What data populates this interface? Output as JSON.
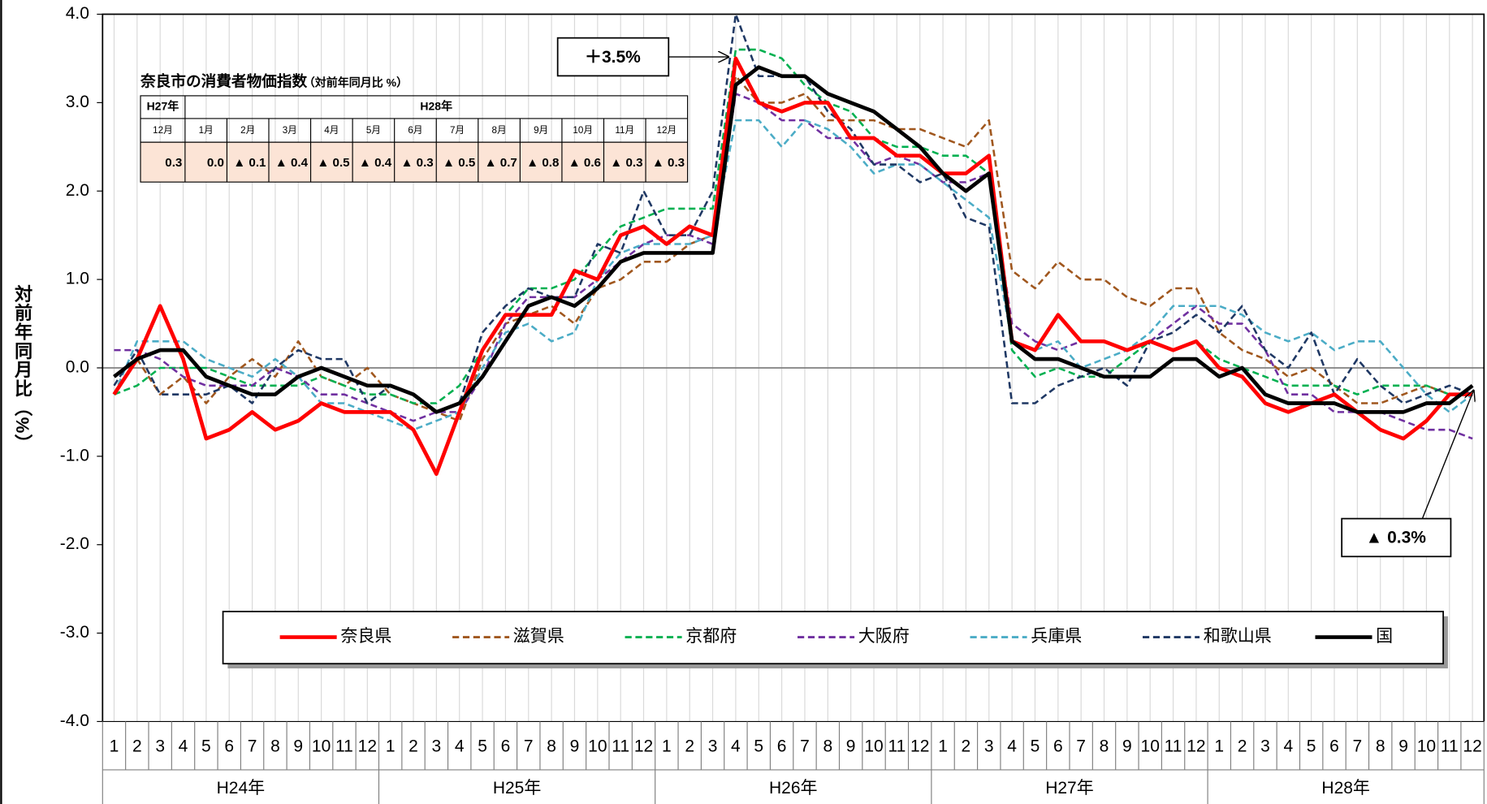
{
  "chart_data": {
    "type": "line",
    "y_label": "対前年同月比（%）",
    "categories": [
      "1",
      "2",
      "3",
      "4",
      "5",
      "6",
      "7",
      "8",
      "9",
      "10",
      "11",
      "12",
      "1",
      "2",
      "3",
      "4",
      "5",
      "6",
      "7",
      "8",
      "9",
      "10",
      "11",
      "12",
      "1",
      "2",
      "3",
      "4",
      "5",
      "6",
      "7",
      "8",
      "9",
      "10",
      "11",
      "12",
      "1",
      "2",
      "3",
      "4",
      "5",
      "6",
      "7",
      "8",
      "9",
      "10",
      "11",
      "12",
      "1",
      "2",
      "3",
      "4",
      "5",
      "6",
      "7",
      "8",
      "9",
      "10",
      "11",
      "12"
    ],
    "x_groups": [
      "H24年",
      "H25年",
      "H26年",
      "H27年",
      "H28年"
    ],
    "ylim": [
      -4,
      4
    ],
    "yticks": [
      {
        "value": 4,
        "label": "4.0"
      },
      {
        "value": 3,
        "label": "3.0"
      },
      {
        "value": 2,
        "label": "2.0"
      },
      {
        "value": 1,
        "label": "1.0"
      },
      {
        "value": 0,
        "label": "0.0"
      },
      {
        "value": -1,
        "label": "-1.0"
      },
      {
        "value": -2,
        "label": "-2.0"
      },
      {
        "value": -3,
        "label": "-3.0"
      },
      {
        "value": -4,
        "label": "-4.0"
      }
    ],
    "negative_tick_color": "#ff0000",
    "grid": true,
    "zero_line": true,
    "legend": "bottom",
    "series": [
      {
        "name": "奈良県",
        "color": "#ff0000",
        "dash": false,
        "values": [
          -0.3,
          0.1,
          0.7,
          0.1,
          -0.8,
          -0.7,
          -0.5,
          -0.7,
          -0.6,
          -0.4,
          -0.5,
          -0.5,
          -0.5,
          -0.7,
          -1.2,
          -0.5,
          0.2,
          0.6,
          0.6,
          0.6,
          1.1,
          1.0,
          1.5,
          1.6,
          1.4,
          1.6,
          1.5,
          3.5,
          3.0,
          2.9,
          3.0,
          3.0,
          2.6,
          2.6,
          2.4,
          2.4,
          2.2,
          2.2,
          2.4,
          0.3,
          0.2,
          0.6,
          0.3,
          0.3,
          0.2,
          0.3,
          0.2,
          0.3,
          0.0,
          -0.1,
          -0.4,
          -0.5,
          -0.4,
          -0.3,
          -0.5,
          -0.7,
          -0.8,
          -0.6,
          -0.3,
          -0.3
        ]
      },
      {
        "name": "滋賀県",
        "color": "#a0571e",
        "dash": true,
        "values": [
          -0.3,
          0.1,
          -0.3,
          -0.1,
          -0.4,
          -0.1,
          0.1,
          -0.1,
          0.3,
          -0.1,
          -0.2,
          0.0,
          -0.3,
          -0.4,
          -0.5,
          -0.6,
          0.1,
          0.5,
          0.6,
          0.7,
          0.5,
          0.9,
          1.0,
          1.2,
          1.2,
          1.4,
          1.5,
          3.3,
          3.0,
          3.0,
          3.1,
          2.8,
          2.8,
          2.8,
          2.7,
          2.7,
          2.6,
          2.5,
          2.8,
          1.1,
          0.9,
          1.2,
          1.0,
          1.0,
          0.8,
          0.7,
          0.9,
          0.9,
          0.4,
          0.2,
          0.1,
          -0.1,
          0.0,
          -0.2,
          -0.4,
          -0.4,
          -0.3,
          -0.2,
          -0.3,
          -0.3
        ]
      },
      {
        "name": "京都府",
        "color": "#00b050",
        "dash": true,
        "values": [
          -0.3,
          -0.2,
          0.0,
          0.0,
          0.0,
          -0.1,
          -0.2,
          -0.2,
          -0.2,
          -0.1,
          -0.2,
          -0.3,
          -0.3,
          -0.4,
          -0.4,
          -0.2,
          0.2,
          0.6,
          0.9,
          0.9,
          1.0,
          1.3,
          1.6,
          1.7,
          1.8,
          1.8,
          1.8,
          3.6,
          3.6,
          3.5,
          3.2,
          3.0,
          2.9,
          2.6,
          2.5,
          2.5,
          2.4,
          2.4,
          2.2,
          0.2,
          -0.1,
          0.0,
          -0.1,
          -0.1,
          0.1,
          0.3,
          0.2,
          0.3,
          0.1,
          0.0,
          -0.1,
          -0.2,
          -0.2,
          -0.2,
          -0.3,
          -0.2,
          -0.2,
          -0.2,
          -0.3,
          -0.3
        ]
      },
      {
        "name": "大阪府",
        "color": "#7030a0",
        "dash": true,
        "values": [
          0.2,
          0.2,
          0.1,
          -0.1,
          -0.2,
          -0.2,
          -0.2,
          0.0,
          -0.1,
          -0.3,
          -0.3,
          -0.4,
          -0.5,
          -0.6,
          -0.5,
          -0.5,
          -0.1,
          0.5,
          0.8,
          0.8,
          0.8,
          1.0,
          1.2,
          1.4,
          1.5,
          1.5,
          1.4,
          3.1,
          3.0,
          2.8,
          2.8,
          2.6,
          2.6,
          2.3,
          2.4,
          2.3,
          2.1,
          2.1,
          2.2,
          0.5,
          0.3,
          0.2,
          0.3,
          0.3,
          0.2,
          0.3,
          0.5,
          0.7,
          0.5,
          0.5,
          0.2,
          -0.3,
          -0.3,
          -0.5,
          -0.5,
          -0.5,
          -0.6,
          -0.7,
          -0.7,
          -0.8
        ]
      },
      {
        "name": "兵庫県",
        "color": "#4bacc6",
        "dash": true,
        "values": [
          -0.3,
          0.3,
          0.3,
          0.3,
          0.1,
          0.0,
          -0.1,
          0.1,
          -0.1,
          -0.4,
          -0.4,
          -0.5,
          -0.6,
          -0.7,
          -0.6,
          -0.5,
          0.0,
          0.4,
          0.5,
          0.3,
          0.4,
          1.0,
          1.3,
          1.4,
          1.4,
          1.4,
          1.5,
          2.8,
          2.8,
          2.5,
          2.8,
          2.7,
          2.5,
          2.2,
          2.3,
          2.3,
          2.1,
          1.9,
          1.7,
          0.3,
          0.2,
          0.3,
          0.0,
          0.1,
          0.2,
          0.4,
          0.7,
          0.7,
          0.7,
          0.6,
          0.4,
          0.3,
          0.4,
          0.2,
          0.3,
          0.3,
          0.0,
          -0.3,
          -0.5,
          -0.3
        ]
      },
      {
        "name": "和歌山県",
        "color": "#1f3864",
        "dash": true,
        "values": [
          -0.2,
          0.2,
          -0.3,
          -0.3,
          -0.3,
          -0.2,
          -0.4,
          0.0,
          0.2,
          0.1,
          0.1,
          -0.4,
          -0.2,
          -0.3,
          -0.5,
          -0.4,
          0.4,
          0.7,
          0.9,
          0.8,
          0.8,
          1.4,
          1.3,
          2.0,
          1.5,
          1.5,
          2.0,
          4.0,
          3.3,
          3.3,
          3.3,
          2.9,
          2.7,
          2.3,
          2.3,
          2.1,
          2.2,
          1.7,
          1.6,
          -0.4,
          -0.4,
          -0.2,
          -0.1,
          0.0,
          -0.2,
          0.3,
          0.4,
          0.6,
          0.4,
          0.7,
          0.2,
          0.0,
          0.4,
          -0.3,
          0.1,
          -0.2,
          -0.4,
          -0.3,
          -0.2,
          -0.3
        ]
      },
      {
        "name": "国",
        "color": "#000000",
        "dash": false,
        "values": [
          -0.1,
          0.1,
          0.2,
          0.2,
          -0.1,
          -0.2,
          -0.3,
          -0.3,
          -0.1,
          0.0,
          -0.1,
          -0.2,
          -0.2,
          -0.3,
          -0.5,
          -0.4,
          -0.1,
          0.3,
          0.7,
          0.8,
          0.7,
          0.9,
          1.2,
          1.3,
          1.3,
          1.3,
          1.3,
          3.2,
          3.4,
          3.3,
          3.3,
          3.1,
          3.0,
          2.9,
          2.7,
          2.5,
          2.2,
          2.0,
          2.2,
          0.3,
          0.1,
          0.1,
          0.0,
          -0.1,
          -0.1,
          -0.1,
          0.1,
          0.1,
          -0.1,
          0.0,
          -0.3,
          -0.4,
          -0.4,
          -0.4,
          -0.5,
          -0.5,
          -0.5,
          -0.4,
          -0.4,
          -0.2
        ]
      }
    ],
    "annotations": [
      "＋3.5%",
      "▲ 0.3%"
    ],
    "inset_table": {
      "title": "奈良市の消費者物価指数",
      "note": "（対前年同月比 %）",
      "years": [
        "H27年",
        "H28年"
      ],
      "months": [
        "12月",
        "1月",
        "2月",
        "3月",
        "4月",
        "5月",
        "6月",
        "7月",
        "8月",
        "9月",
        "10月",
        "11月",
        "12月"
      ],
      "values": [
        "0.3",
        "0.0",
        "▲ 0.1",
        "▲ 0.4",
        "▲ 0.5",
        "▲ 0.4",
        "▲ 0.3",
        "▲ 0.5",
        "▲ 0.7",
        "▲ 0.8",
        "▲ 0.6",
        "▲ 0.3",
        "▲ 0.3"
      ]
    }
  }
}
